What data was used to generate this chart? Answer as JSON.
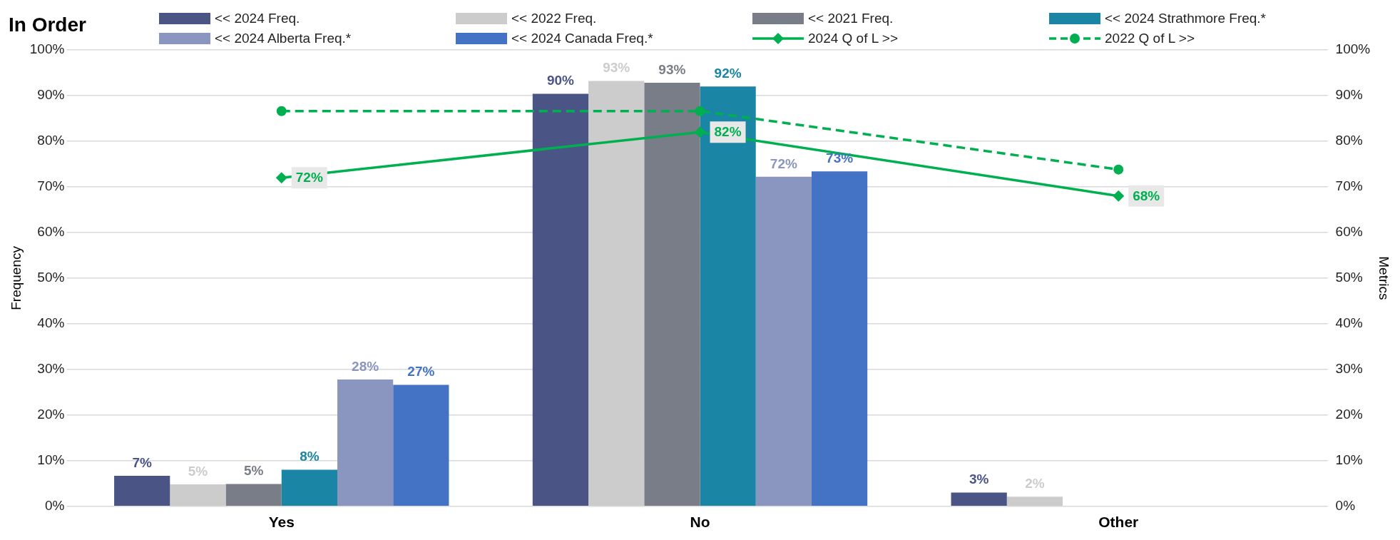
{
  "chart_data": {
    "type": "bar",
    "title": "In Order",
    "ylabel": "Frequency",
    "y2label": "Metrics",
    "categories": [
      "Yes",
      "No",
      "Other"
    ],
    "series": [
      {
        "name": "<< 2024 Freq.",
        "color": "#4a5585",
        "values": [
          6.7,
          90.4,
          3.0
        ],
        "value_labels": [
          "7%",
          "90%",
          "3%"
        ]
      },
      {
        "name": "<< 2022 Freq.",
        "color": "#cccccc",
        "values": [
          4.8,
          93.2,
          2.1
        ],
        "value_labels": [
          "5%",
          "93%",
          "2%"
        ]
      },
      {
        "name": "<< 2021 Freq.",
        "color": "#787d87",
        "values": [
          4.9,
          92.8,
          null
        ],
        "value_labels": [
          "5%",
          "93%",
          null
        ]
      },
      {
        "name": "<< 2024 Strathmore Freq.*",
        "color": "#1a85a5",
        "values": [
          8.0,
          92.0,
          null
        ],
        "value_labels": [
          "8%",
          "92%",
          null
        ]
      },
      {
        "name": "<< 2024 Alberta Freq.*",
        "color": "#8a95c0",
        "values": [
          27.8,
          72.2,
          null
        ],
        "value_labels": [
          "28%",
          "72%",
          null
        ]
      },
      {
        "name": "<< 2024 Canada Freq.*",
        "color": "#4472c4",
        "values": [
          26.6,
          73.4,
          null
        ],
        "value_labels": [
          "27%",
          "73%",
          null
        ]
      },
      {
        "name": "2024 Q of L >>",
        "type": "line",
        "axis": "y2",
        "color": "#00b050",
        "marker": "diamond",
        "line_style": "solid",
        "values": [
          72,
          82,
          68
        ],
        "value_labels": [
          "72%",
          "82%",
          "68%"
        ]
      },
      {
        "name": "2022 Q of L >>",
        "type": "line",
        "axis": "y2",
        "color": "#00b050",
        "marker": "circle",
        "line_style": "dashed",
        "values": [
          86.6,
          86.6,
          73.8
        ]
      }
    ],
    "ylim": [
      0,
      100
    ],
    "yticks": [
      {
        "value": 0,
        "label": "0%"
      },
      {
        "value": 10,
        "label": "10%"
      },
      {
        "value": 20,
        "label": "20%"
      },
      {
        "value": 30,
        "label": "30%"
      },
      {
        "value": 40,
        "label": "40%"
      },
      {
        "value": 50,
        "label": "50%"
      },
      {
        "value": 60,
        "label": "60%"
      },
      {
        "value": 70,
        "label": "70%"
      },
      {
        "value": 80,
        "label": "80%"
      },
      {
        "value": 90,
        "label": "90%"
      },
      {
        "value": 100,
        "label": "100%"
      }
    ],
    "y2lim": [
      0,
      100
    ],
    "y2ticks": [
      {
        "value": 0,
        "label": "0%"
      },
      {
        "value": 10,
        "label": "10%"
      },
      {
        "value": 20,
        "label": "20%"
      },
      {
        "value": 30,
        "label": "30%"
      },
      {
        "value": 40,
        "label": "40%"
      },
      {
        "value": 50,
        "label": "50%"
      },
      {
        "value": 60,
        "label": "60%"
      },
      {
        "value": 70,
        "label": "70%"
      },
      {
        "value": 80,
        "label": "80%"
      },
      {
        "value": 90,
        "label": "90%"
      },
      {
        "value": 100,
        "label": "100%"
      }
    ],
    "grid": "y",
    "legend": "top"
  }
}
